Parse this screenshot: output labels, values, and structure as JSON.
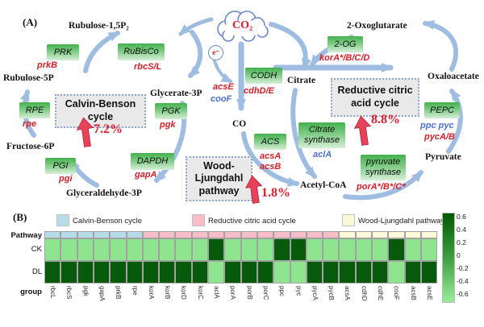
{
  "accent_colors": {
    "flux_arrow_blue": "#9fbce1",
    "upregulation_red": "#e6425a",
    "gene_red": "#d21f26",
    "gene_blue": "#4a6fd0",
    "enzyme_box_green": "#43b14c"
  },
  "panel_a": {
    "label": "(A)",
    "co2": "CO₂",
    "electron": "e⁻",
    "metabolites": {
      "rubulose15p2": "Rubulose-1,5P₂",
      "rubulose5p": "Rubulose-5P",
      "fructose6p": "Fructose-6P",
      "glyceraldehyde3p": "Glyceraldehyde-3P",
      "glycerate3p": "Glycerate-3P",
      "co": "CO",
      "citrate": "Citrate",
      "oxoglutarate": "2-Oxoglutarate",
      "oxaloacetate": "Oxaloacetate",
      "acetylcoa": "Acetyl-CoA",
      "pyruvate": "Pyruvate"
    },
    "enzymes": {
      "prk": {
        "box": "PRK",
        "gene": "prkB"
      },
      "rubisco": {
        "box": "RuBisCo",
        "gene": "rbcS/L"
      },
      "rpe": {
        "box": "RPE",
        "gene": "rpe"
      },
      "pgi": {
        "box": "PGI",
        "gene": "pgi"
      },
      "pgk": {
        "box": "PGK",
        "gene": "pgk"
      },
      "dapdh": {
        "box": "DAPDH",
        "gene": "gapA"
      },
      "codh": {
        "box": "CODH",
        "gene": "cdhD/E"
      },
      "acs": {
        "box": "ACS",
        "gene1": "acsA",
        "gene2": "acsB"
      },
      "citrate_synthase": {
        "box": "Citrate synthase",
        "gene": "aclA"
      },
      "og2": {
        "box": "2-OG",
        "gene": "korA*/B/C/D"
      },
      "pepc": {
        "box": "PEPC",
        "gene_blue": "ppc pyc",
        "gene_red": "pycA/B"
      },
      "pyruvate_synthase": {
        "box": "pyruvate synthase",
        "gene": "porA*/B*/C*"
      }
    },
    "loose_genes": {
      "acsE": "acsE",
      "cooF": "cooF"
    },
    "pathway_boxes": {
      "calvin": {
        "name": "Calvin-Benson cycle",
        "pct": "7.2%"
      },
      "wood": {
        "name": "Wood-Ljungdahl pathway",
        "pct": "1.8%"
      },
      "reductive": {
        "name": "Reductive citric acid cycle",
        "pct": "8.8%"
      }
    }
  },
  "panel_b": {
    "label": "(B)",
    "row_labels": {
      "pathway": "Pathway",
      "ck": "CK",
      "dl": "DL",
      "group": "group"
    },
    "legend": [
      {
        "label": "Calvin-Benson cycle",
        "color": "#b7dbe9"
      },
      {
        "label": "Reductive citric acid cycle",
        "color": "#f9bcc9"
      },
      {
        "label": "Wood-Ljungdahl pathway",
        "color": "#fbf9d8"
      }
    ]
  },
  "chart_data": {
    "type": "heatmap",
    "title": "",
    "column_axis_label": "group",
    "pathway_row_label": "Pathway",
    "rows": [
      "CK",
      "DL"
    ],
    "columns": [
      "rbcL",
      "rbcS",
      "pgk",
      "gapA",
      "prkB",
      "rpe",
      "korA",
      "korB",
      "korD",
      "korC",
      "aclA",
      "porA",
      "porB",
      "porC",
      "ppc",
      "pyc",
      "pycA",
      "pycB",
      "acsA",
      "cdhD",
      "cdhE",
      "cooF",
      "acsB",
      "acsE"
    ],
    "pathway_row": {
      "assignments": [
        {
          "pathway": "Calvin-Benson cycle",
          "span": 6
        },
        {
          "pathway": "Reductive citric acid cycle",
          "span": 12
        },
        {
          "pathway": "Wood-Ljungdahl pathway",
          "span": 6
        }
      ]
    },
    "pathway_colors": {
      "Calvin-Benson cycle": "#b7dbe9",
      "Reductive citric acid cycle": "#f9bcc9",
      "Wood-Ljungdahl pathway": "#fbf9d8"
    },
    "values": {
      "CK": [
        -0.5,
        -0.5,
        -0.5,
        -0.5,
        -0.5,
        -0.5,
        -0.5,
        -0.5,
        -0.5,
        -0.5,
        0.7,
        -0.5,
        -0.5,
        -0.5,
        0.7,
        0.7,
        -0.5,
        -0.5,
        -0.5,
        -0.5,
        -0.5,
        0.7,
        -0.5,
        -0.5
      ],
      "DL": [
        0.7,
        0.7,
        0.7,
        0.7,
        0.7,
        0.7,
        0.7,
        0.7,
        0.7,
        0.7,
        -0.5,
        0.7,
        0.7,
        0.7,
        -0.5,
        -0.5,
        0.7,
        0.7,
        0.7,
        0.7,
        0.7,
        -0.5,
        0.7,
        0.7
      ]
    },
    "cell_colors": {
      "high": "#07590b",
      "low": "#8fe48f"
    },
    "colorbar": {
      "ticks": [
        "0.6",
        "0.4",
        "0.2",
        "0",
        "-0.2",
        "-0.4",
        "-0.6"
      ],
      "range": [
        -0.7,
        0.7
      ],
      "max_color": "#015a01",
      "mid_color": "#3f9e3f",
      "min_color": "#98ee98"
    },
    "legend_position": "top",
    "grid": true
  }
}
